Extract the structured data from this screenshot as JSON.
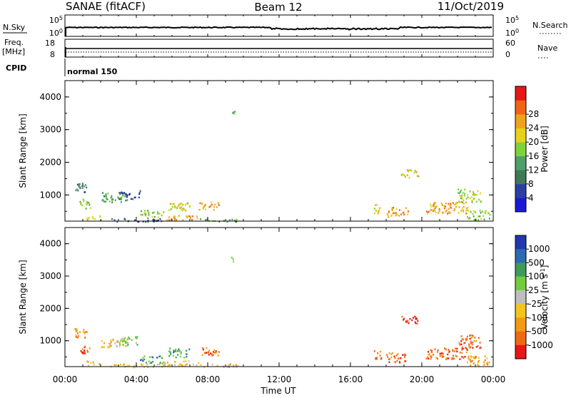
{
  "header": {
    "station": "SANAE (fitACF)",
    "beam": "Beam 12",
    "date": "11/Oct/2019"
  },
  "strip": {
    "nsky_label": "N.Sky",
    "nsky_ticks": [
      "10^5",
      "10^0"
    ],
    "nsearch_label": "N.Search",
    "nsearch_ticks": [
      "10^5",
      "10^0"
    ],
    "freq_label": "Freq.",
    "freq_unit": "[MHz]",
    "freq_ticks": [
      "18",
      "8"
    ],
    "nave_label": "Nave",
    "nave_ticks": [
      "60",
      "0"
    ],
    "cpid_label": "CPID",
    "cpid_value": "normal 150"
  },
  "colors": {
    "power": [
      "#1a1ad6",
      "#2b3fa3",
      "#3e7a55",
      "#4e9f6a",
      "#7ed23a",
      "#e6d21a",
      "#f0a21a",
      "#f06414",
      "#e81616"
    ],
    "velocity": [
      "#2236b0",
      "#2c6bb0",
      "#3e9b5a",
      "#72cc3c",
      "#bebebe",
      "#f2c41e",
      "#f29a14",
      "#ee6a12",
      "#e81616"
    ]
  },
  "chart_data": [
    {
      "type": "heatmap",
      "title": "Power",
      "ylabel": "Slant Range [km]",
      "xlabel": "Time UT",
      "x_ticks": [
        "00:00",
        "04:00",
        "08:00",
        "12:00",
        "16:00",
        "20:00",
        "00:00"
      ],
      "y_ticks": [
        "1000",
        "2000",
        "3000",
        "4000"
      ],
      "ylim": [
        200,
        4500
      ],
      "xlim_hours": [
        0,
        24
      ],
      "colorbar": {
        "label": "Power [dB]",
        "ticks": [
          "4",
          "8",
          "12",
          "16",
          "20",
          "24",
          "28"
        ],
        "range": [
          0,
          32
        ]
      },
      "clusters": [
        {
          "t0": 0.5,
          "t1": 1.2,
          "r0": 1100,
          "r1": 1400,
          "level": 2
        },
        {
          "t0": 0.8,
          "t1": 1.4,
          "r0": 600,
          "r1": 900,
          "level": 4
        },
        {
          "t0": 1.2,
          "t1": 2.0,
          "r0": 250,
          "r1": 400,
          "level": 5
        },
        {
          "t0": 2.0,
          "t1": 3.5,
          "r0": 800,
          "r1": 1100,
          "level": 3
        },
        {
          "t0": 3.0,
          "t1": 4.2,
          "r0": 900,
          "r1": 1150,
          "level": 1
        },
        {
          "t0": 2.5,
          "t1": 5.5,
          "r0": 200,
          "r1": 300,
          "level": 1
        },
        {
          "t0": 4.2,
          "t1": 5.5,
          "r0": 300,
          "r1": 550,
          "level": 4
        },
        {
          "t0": 5.7,
          "t1": 7.0,
          "r0": 500,
          "r1": 800,
          "level": 5
        },
        {
          "t0": 5.5,
          "t1": 7.5,
          "r0": 250,
          "r1": 400,
          "level": 6
        },
        {
          "t0": 7.5,
          "t1": 8.6,
          "r0": 550,
          "r1": 800,
          "level": 6
        },
        {
          "t0": 7.5,
          "t1": 9.7,
          "r0": 200,
          "r1": 300,
          "level": 3
        },
        {
          "t0": 9.3,
          "t1": 9.5,
          "r0": 3450,
          "r1": 3600,
          "level": 3
        },
        {
          "t0": 17.3,
          "t1": 17.7,
          "r0": 450,
          "r1": 750,
          "level": 5
        },
        {
          "t0": 18.0,
          "t1": 19.2,
          "r0": 350,
          "r1": 650,
          "level": 6
        },
        {
          "t0": 18.8,
          "t1": 19.8,
          "r0": 1550,
          "r1": 1800,
          "level": 5
        },
        {
          "t0": 20.2,
          "t1": 22.6,
          "r0": 450,
          "r1": 800,
          "level": 6
        },
        {
          "t0": 22.0,
          "t1": 23.3,
          "r0": 800,
          "r1": 1200,
          "level": 4
        },
        {
          "t0": 22.5,
          "t1": 23.8,
          "r0": 250,
          "r1": 550,
          "level": 4
        }
      ]
    },
    {
      "type": "heatmap",
      "title": "Velocity",
      "ylabel": "Slant Range [km]",
      "xlabel": "Time UT",
      "x_ticks": [
        "00:00",
        "04:00",
        "08:00",
        "12:00",
        "16:00",
        "20:00",
        "00:00"
      ],
      "y_ticks": [
        "1000",
        "2000",
        "3000",
        "4000"
      ],
      "ylim": [
        200,
        4500
      ],
      "xlim_hours": [
        0,
        24
      ],
      "colorbar": {
        "label": "Velocity [m s^-1]",
        "ticks": [
          "1000",
          "500",
          "100",
          "25",
          "-25",
          "-100",
          "-500",
          "-1000"
        ]
      },
      "clusters": [
        {
          "t0": 0.5,
          "t1": 1.2,
          "r0": 1100,
          "r1": 1400,
          "level": 6
        },
        {
          "t0": 0.8,
          "t1": 1.4,
          "r0": 600,
          "r1": 900,
          "level": 7
        },
        {
          "t0": 1.2,
          "t1": 2.0,
          "r0": 250,
          "r1": 400,
          "level": 5
        },
        {
          "t0": 2.0,
          "t1": 3.5,
          "r0": 800,
          "r1": 1100,
          "level": 5
        },
        {
          "t0": 3.0,
          "t1": 4.2,
          "r0": 900,
          "r1": 1150,
          "level": 3
        },
        {
          "t0": 2.5,
          "t1": 5.5,
          "r0": 200,
          "r1": 300,
          "level": 5
        },
        {
          "t0": 4.2,
          "t1": 5.5,
          "r0": 300,
          "r1": 550,
          "level": 2
        },
        {
          "t0": 5.7,
          "t1": 7.0,
          "r0": 500,
          "r1": 800,
          "level": 2
        },
        {
          "t0": 5.5,
          "t1": 7.5,
          "r0": 250,
          "r1": 400,
          "level": 5
        },
        {
          "t0": 7.5,
          "t1": 8.6,
          "r0": 550,
          "r1": 800,
          "level": 7
        },
        {
          "t0": 7.5,
          "t1": 9.7,
          "r0": 200,
          "r1": 300,
          "level": 5
        },
        {
          "t0": 9.3,
          "t1": 9.5,
          "r0": 3450,
          "r1": 3600,
          "level": 4
        },
        {
          "t0": 17.3,
          "t1": 17.7,
          "r0": 450,
          "r1": 750,
          "level": 7
        },
        {
          "t0": 18.0,
          "t1": 19.2,
          "r0": 350,
          "r1": 650,
          "level": 7
        },
        {
          "t0": 18.8,
          "t1": 19.8,
          "r0": 1550,
          "r1": 1800,
          "level": 8
        },
        {
          "t0": 20.2,
          "t1": 22.6,
          "r0": 450,
          "r1": 800,
          "level": 7
        },
        {
          "t0": 22.0,
          "t1": 23.3,
          "r0": 800,
          "r1": 1200,
          "level": 7
        },
        {
          "t0": 22.5,
          "t1": 23.8,
          "r0": 250,
          "r1": 550,
          "level": 6
        }
      ]
    }
  ]
}
